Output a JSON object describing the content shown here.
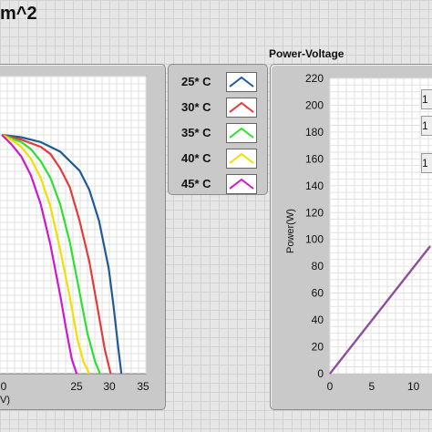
{
  "window": {
    "title_fragment": "m^2"
  },
  "legend": {
    "items": [
      {
        "label": "25* C",
        "color": "#1f5a96"
      },
      {
        "label": "30* C",
        "color": "#e03c3c"
      },
      {
        "label": "35* C",
        "color": "#2ee02e"
      },
      {
        "label": "40* C",
        "color": "#f0e000"
      },
      {
        "label": "45* C",
        "color": "#cc19cc"
      }
    ]
  },
  "left_graph": {
    "x_ticks": [
      "0",
      "25",
      "30",
      "35"
    ],
    "x_axis_label_fragment": "V)"
  },
  "right_graph": {
    "title": "Power-Voltage",
    "y_axis_label": "Power(W)",
    "y_ticks": [
      "0",
      "20",
      "40",
      "60",
      "80",
      "100",
      "120",
      "140",
      "160",
      "180",
      "200",
      "220"
    ],
    "x_ticks": [
      "0",
      "5",
      "10"
    ],
    "side_values": [
      "1",
      "1",
      "1"
    ]
  },
  "chart_data": [
    {
      "type": "line",
      "xlabel": "",
      "ylabel": "",
      "xlim": [
        20,
        35
      ],
      "series": [
        {
          "name": "25* C",
          "x": [
            20,
            22,
            24,
            26,
            28,
            29,
            30,
            31,
            31.5,
            32,
            32.3
          ],
          "y": [
            1.0,
            0.99,
            0.97,
            0.93,
            0.85,
            0.77,
            0.64,
            0.44,
            0.28,
            0.1,
            0
          ]
        },
        {
          "name": "30* C",
          "x": [
            20,
            22,
            24,
            25,
            26,
            27,
            28,
            29,
            30,
            30.6,
            31.2
          ],
          "y": [
            1.0,
            0.98,
            0.95,
            0.92,
            0.86,
            0.78,
            0.64,
            0.47,
            0.24,
            0.1,
            0
          ]
        },
        {
          "name": "35* C",
          "x": [
            20,
            22,
            23,
            24,
            25,
            26,
            27,
            28,
            28.8,
            29.6,
            30.1
          ],
          "y": [
            1.0,
            0.97,
            0.94,
            0.89,
            0.82,
            0.71,
            0.55,
            0.34,
            0.17,
            0.05,
            0
          ]
        },
        {
          "name": "40* C",
          "x": [
            20,
            21,
            22,
            23,
            24,
            25,
            26,
            27,
            27.8,
            28.4,
            29.0
          ],
          "y": [
            1.0,
            0.98,
            0.95,
            0.9,
            0.82,
            0.7,
            0.52,
            0.32,
            0.14,
            0.05,
            0
          ]
        },
        {
          "name": "45* C",
          "x": [
            20,
            21,
            22,
            23,
            24,
            25,
            26,
            26.6,
            27.2,
            27.7
          ],
          "y": [
            1.0,
            0.96,
            0.91,
            0.83,
            0.71,
            0.54,
            0.33,
            0.19,
            0.06,
            0
          ]
        }
      ]
    },
    {
      "type": "line",
      "title": "Power-Voltage",
      "ylabel": "Power(W)",
      "xlim": [
        0,
        12
      ],
      "ylim": [
        0,
        220
      ],
      "series": [
        {
          "name": "25* C",
          "x": [
            0,
            12
          ],
          "y": [
            0,
            95
          ]
        }
      ]
    }
  ]
}
